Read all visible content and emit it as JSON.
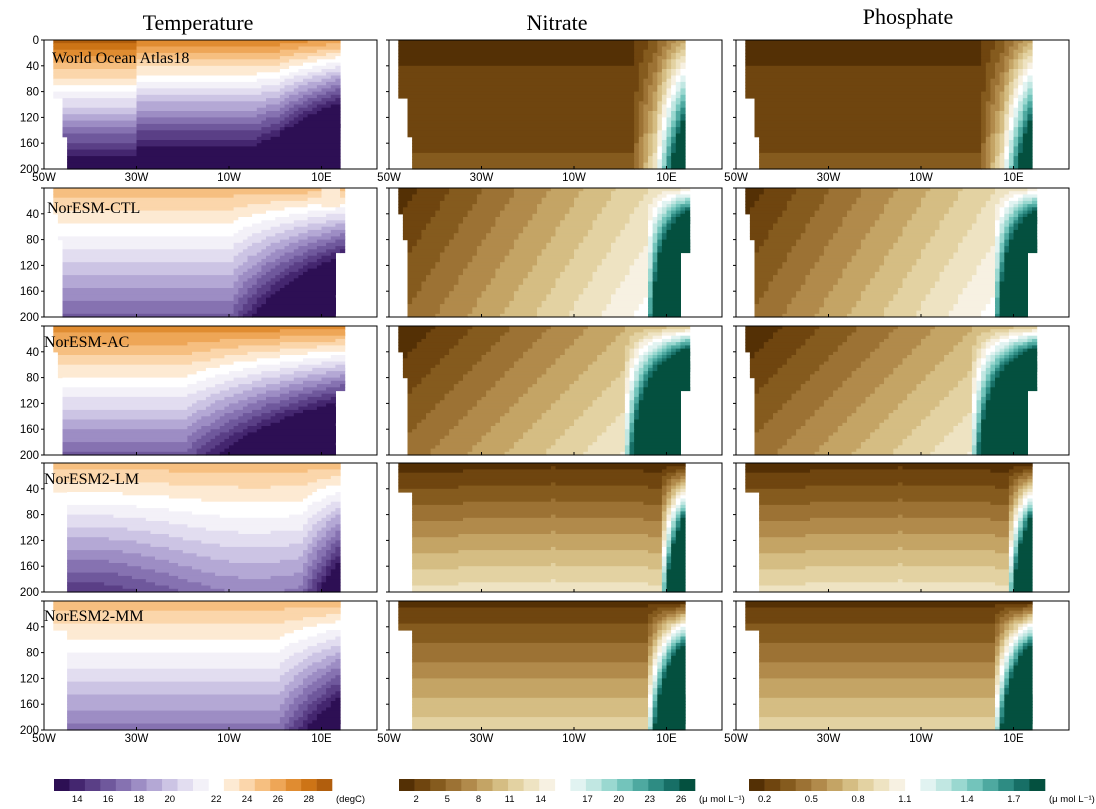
{
  "chart_data": {
    "type": "heatmap",
    "column_titles": [
      "Temperature",
      "Nitrate",
      "Phosphate"
    ],
    "row_labels": [
      "World Ocean Atlas18",
      "NorESM-CTL",
      "NorESM-AC",
      "NorESM2-LM",
      "NorESM2-MM"
    ],
    "x_ticks": [
      "50W",
      "30W",
      "10W",
      "10E"
    ],
    "x_tick_values": [
      -50,
      -30,
      -10,
      10
    ],
    "xlim": [
      -50,
      22
    ],
    "y_ticks_top_row": [
      "0",
      "40",
      "80",
      "120",
      "160",
      "200"
    ],
    "y_ticks_other_rows": [
      "40",
      "80",
      "120",
      "160",
      "200"
    ],
    "y_tick_values": [
      0,
      40,
      80,
      120,
      160,
      200
    ],
    "ylim": [
      0,
      200
    ],
    "colorbars": [
      {
        "variable": "Temperature",
        "ticks": [
          "14",
          "16",
          "18",
          "20",
          "22",
          "24",
          "26",
          "28"
        ],
        "unit": "(degC)",
        "colors": [
          "#2d0f54",
          "#44266f",
          "#5a3f86",
          "#6f589c",
          "#8672b1",
          "#9d8dc4",
          "#b4a8d5",
          "#ccc4e4",
          "#e2ddf0",
          "#f3f1f8",
          "#ffffff",
          "#fdead3",
          "#fbd6ab",
          "#f6bf80",
          "#eea657",
          "#e08c31",
          "#cd7416",
          "#b15e0d"
        ]
      },
      {
        "variable": "Nitrate",
        "ticks": [
          "2",
          "5",
          "8",
          "11",
          "14",
          "17",
          "20",
          "23",
          "26"
        ],
        "unit": "(μ mol L⁻¹)",
        "colors": [
          "#543005",
          "#6f450f",
          "#855b1e",
          "#9c7234",
          "#b18a4b",
          "#c4a465",
          "#d5bd83",
          "#e3d2a2",
          "#eee3c2",
          "#f7f1e2",
          "#ffffff",
          "#e1f3f1",
          "#c1e7e2",
          "#9ad8d0",
          "#73c4bb",
          "#4ea9a0",
          "#2e8c83",
          "#176f66",
          "#04503f"
        ]
      },
      {
        "variable": "Phosphate",
        "ticks": [
          "0.2",
          "0.5",
          "0.8",
          "1.1",
          "1.4",
          "1.7"
        ],
        "unit": "(μ mol L⁻¹)",
        "colors": [
          "#543005",
          "#6f450f",
          "#855b1e",
          "#9c7234",
          "#b18a4b",
          "#c4a465",
          "#d5bd83",
          "#e3d2a2",
          "#eee3c2",
          "#f7f1e2",
          "#ffffff",
          "#e1f3f1",
          "#c1e7e2",
          "#9ad8d0",
          "#73c4bb",
          "#4ea9a0",
          "#2e8c83",
          "#176f66",
          "#04503f"
        ]
      }
    ],
    "panels": [
      {
        "row": 0,
        "col": 0,
        "var": "T",
        "kind": "obs"
      },
      {
        "row": 0,
        "col": 1,
        "var": "N",
        "kind": "obs"
      },
      {
        "row": 0,
        "col": 2,
        "var": "P",
        "kind": "obs"
      },
      {
        "row": 1,
        "col": 0,
        "var": "T",
        "kind": "ctl"
      },
      {
        "row": 1,
        "col": 1,
        "var": "N",
        "kind": "ctl"
      },
      {
        "row": 1,
        "col": 2,
        "var": "P",
        "kind": "ctl"
      },
      {
        "row": 2,
        "col": 0,
        "var": "T",
        "kind": "ac"
      },
      {
        "row": 2,
        "col": 1,
        "var": "N",
        "kind": "ac"
      },
      {
        "row": 2,
        "col": 2,
        "var": "P",
        "kind": "ac"
      },
      {
        "row": 3,
        "col": 0,
        "var": "T",
        "kind": "lm"
      },
      {
        "row": 3,
        "col": 1,
        "var": "N",
        "kind": "lm"
      },
      {
        "row": 3,
        "col": 2,
        "var": "P",
        "kind": "lm"
      },
      {
        "row": 4,
        "col": 0,
        "var": "T",
        "kind": "mm"
      },
      {
        "row": 4,
        "col": 1,
        "var": "N",
        "kind": "mm"
      },
      {
        "row": 4,
        "col": 2,
        "var": "P",
        "kind": "mm"
      }
    ]
  }
}
